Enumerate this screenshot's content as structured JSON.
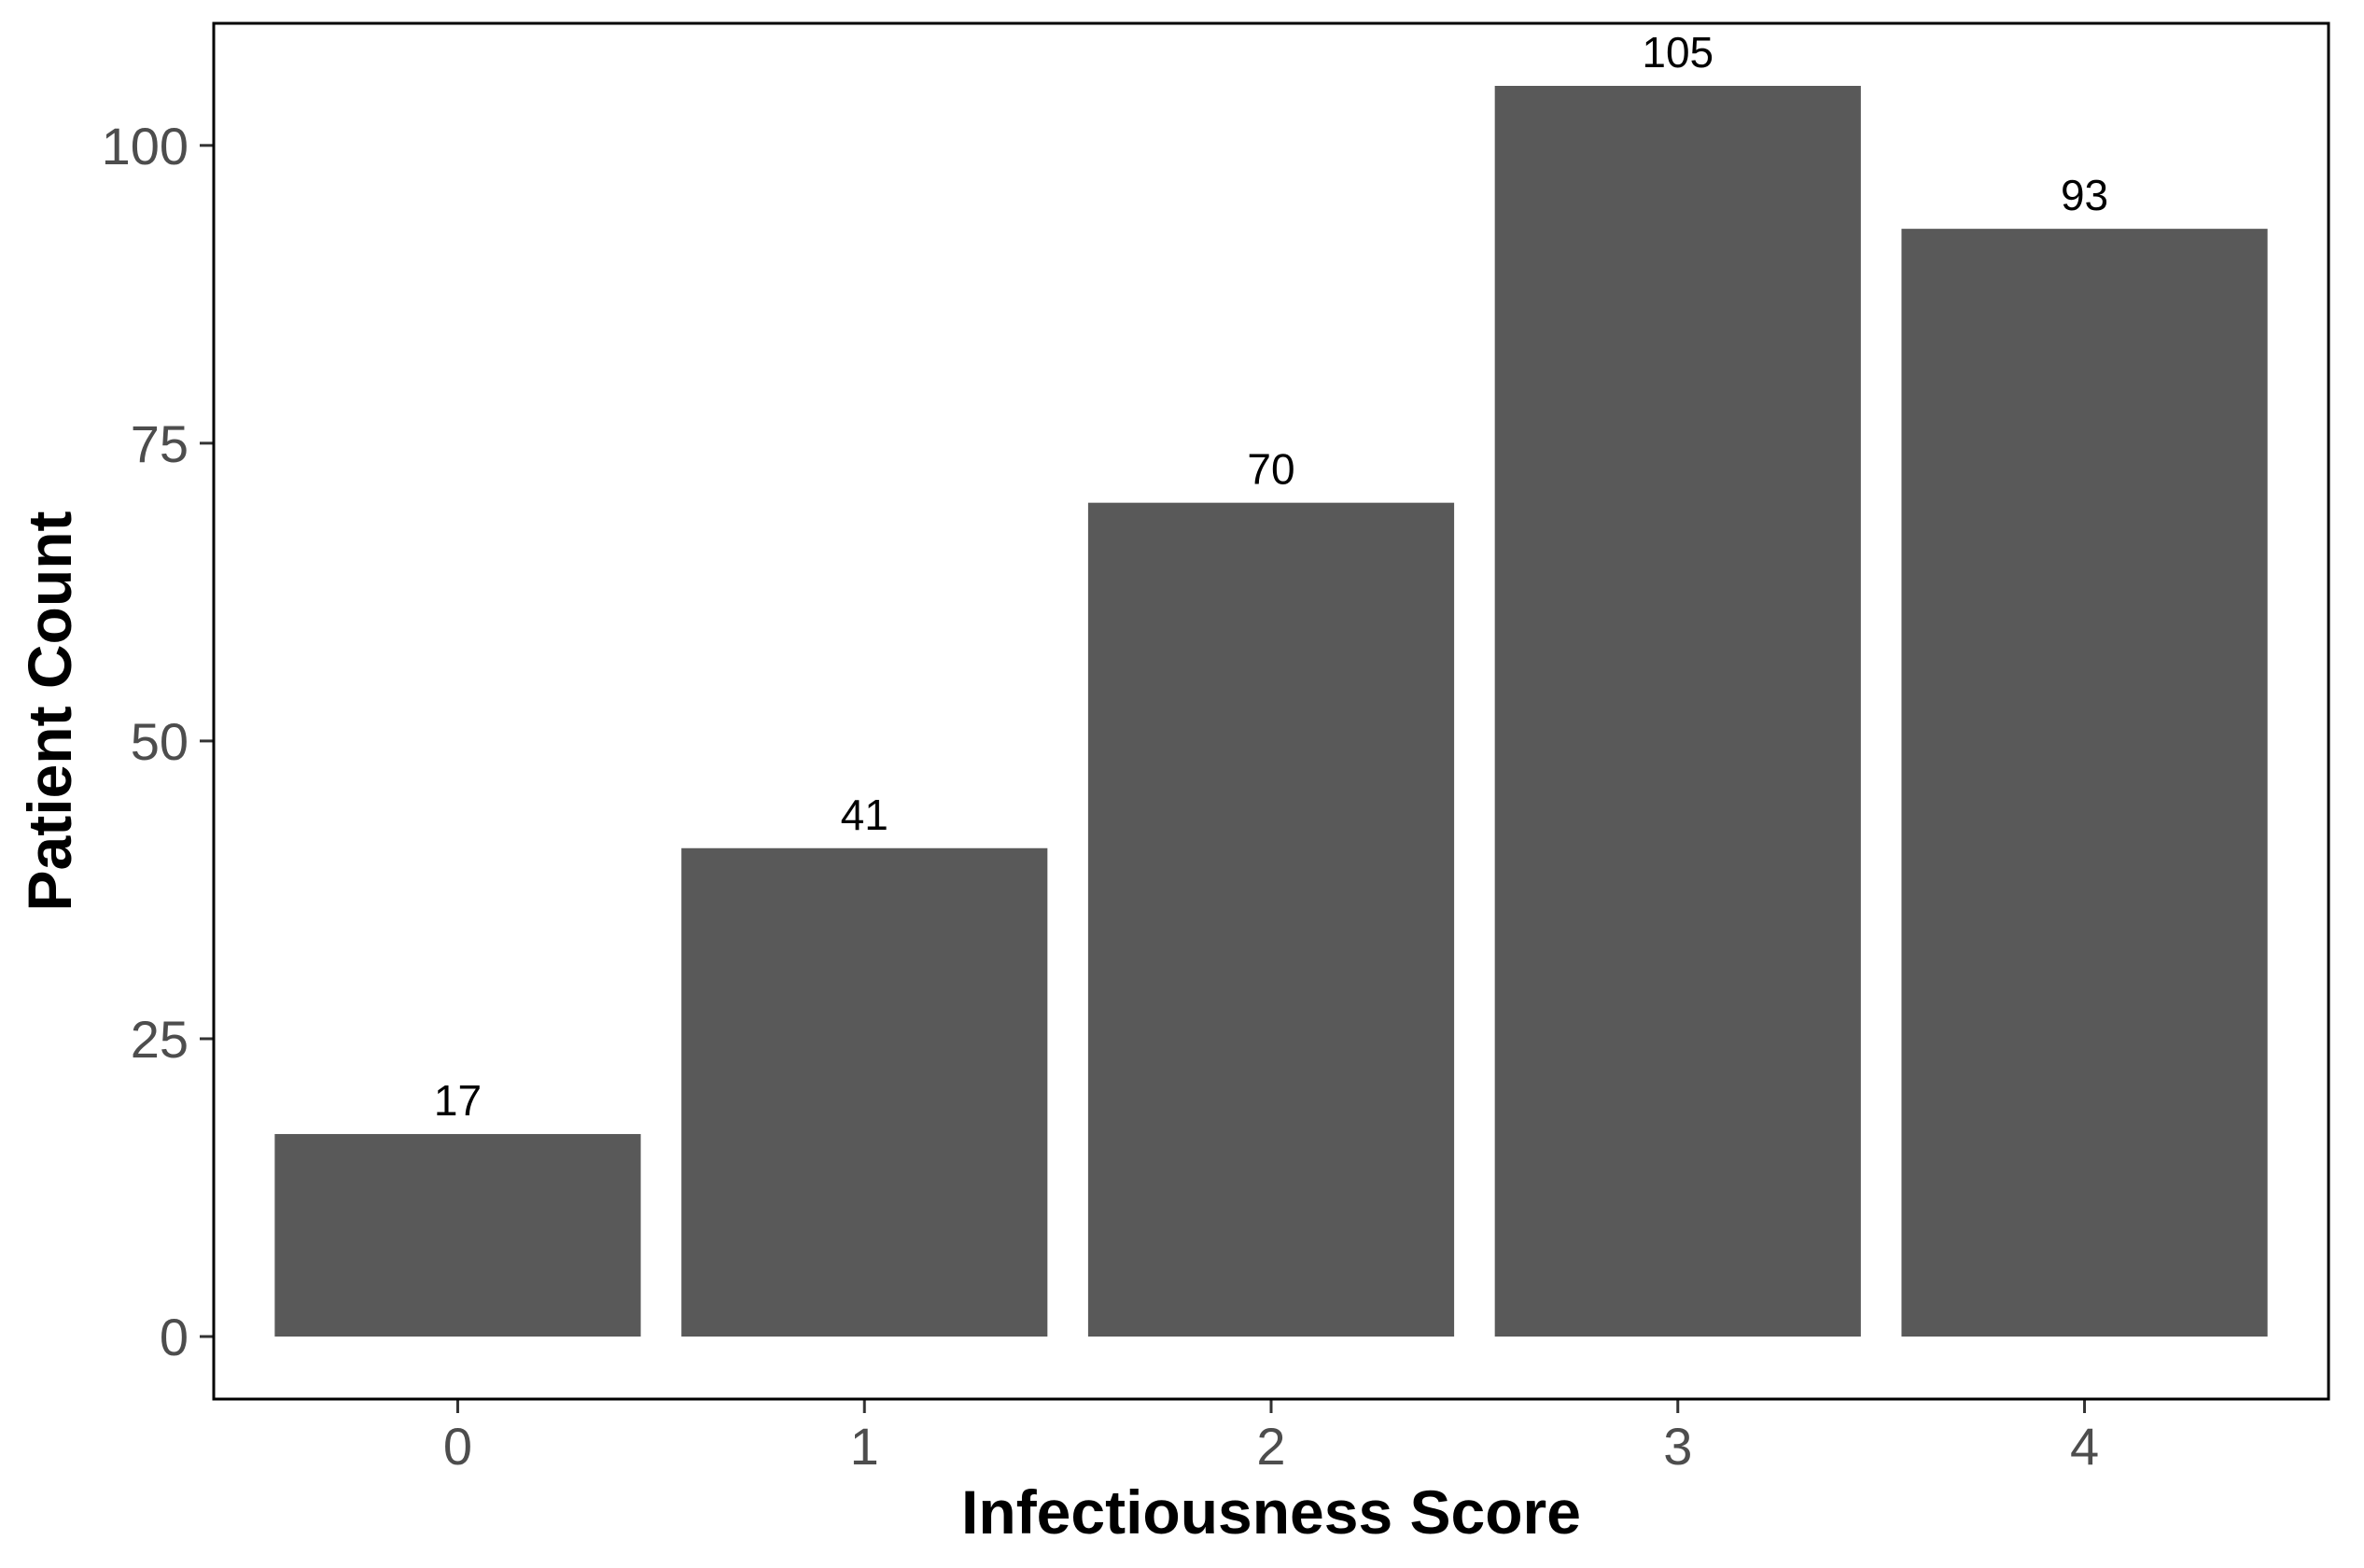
{
  "chart_data": {
    "type": "bar",
    "categories": [
      "0",
      "1",
      "2",
      "3",
      "4"
    ],
    "values": [
      17,
      41,
      70,
      105,
      93
    ],
    "data_labels": [
      "17",
      "41",
      "70",
      "105",
      "93"
    ],
    "title": "",
    "xlabel": "Infectiousness Score",
    "ylabel": "Patient Count",
    "ylim": [
      -5.25,
      110.25
    ],
    "yticks": [
      0,
      25,
      50,
      75,
      100
    ],
    "ytick_labels": [
      "0",
      "25",
      "50",
      "75",
      "100"
    ],
    "grid": false,
    "legend": "none",
    "bar_color": "#595959",
    "panel_border_color": "#000000"
  }
}
